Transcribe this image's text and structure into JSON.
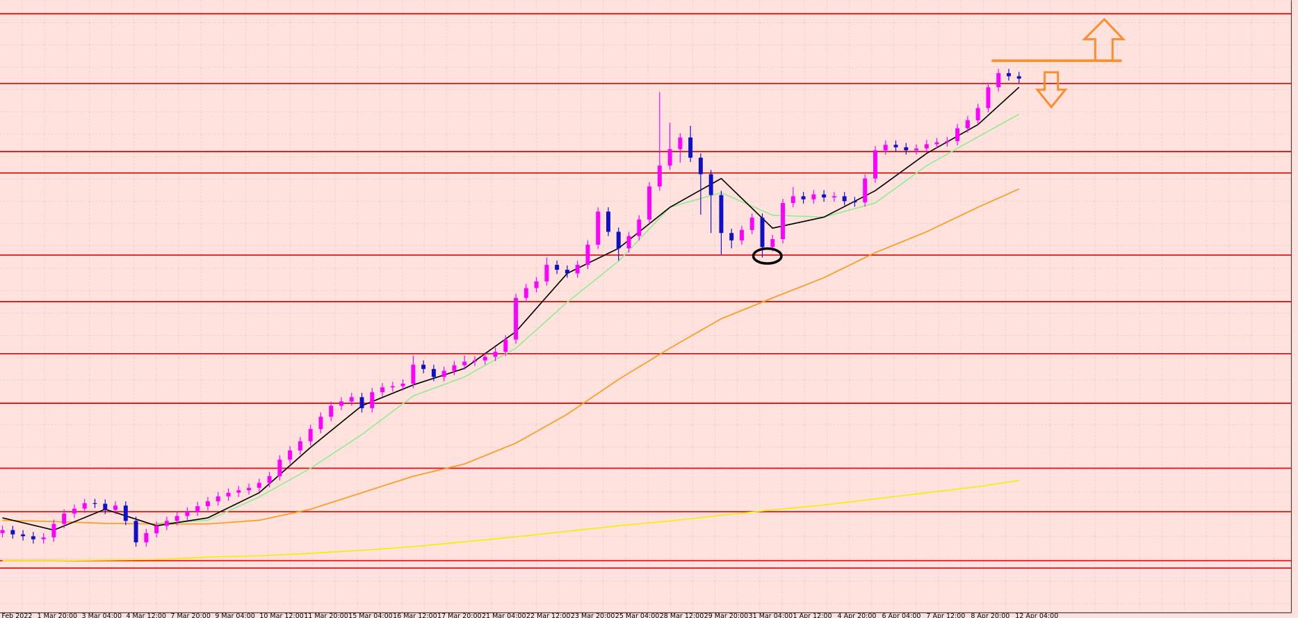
{
  "chart_data": {
    "type": "candlestick",
    "up_color": "#ff00ff",
    "down_color": "#1010c8",
    "level_color": "#ee0000",
    "grid": true,
    "ylim": [
      0,
      100
    ],
    "open": [
      13.0,
      13.5,
      12.8,
      12.5,
      12.0,
      12.3,
      14.5,
      16.2,
      17.0,
      17.9,
      17.8,
      16.8,
      17.5,
      15.0,
      11.5,
      13.0,
      14.2,
      15.0,
      15.8,
      16.5,
      17.4,
      18.2,
      19.0,
      19.6,
      20.0,
      20.4,
      21.2,
      22.3,
      25.0,
      26.5,
      28.0,
      30.0,
      32.0,
      33.8,
      34.5,
      35.2,
      33.4,
      36.0,
      36.8,
      37.0,
      37.4,
      40.5,
      39.8,
      38.5,
      39.5,
      40.4,
      41.0,
      41.2,
      41.8,
      42.6,
      44.6,
      51.4,
      53.0,
      54.1,
      56.8,
      56.0,
      55.4,
      56.8,
      60.1,
      65.5,
      62.2,
      59.5,
      61.5,
      64.2,
      69.6,
      73.0,
      75.7,
      77.6,
      74.3,
      71.6,
      68.2,
      62.0,
      60.8,
      62.5,
      64.5,
      59.7,
      61.0,
      66.9,
      68.0,
      67.5,
      68.3,
      67.8,
      68.0,
      67.2,
      67.0,
      70.9,
      75.5,
      76.4,
      76.0,
      75.5,
      75.8,
      76.5,
      76.8,
      77.0,
      79.1,
      80.4,
      82.4,
      85.8,
      88.1,
      87.6
    ],
    "high": [
      14.2,
      14.2,
      13.5,
      13.2,
      13.0,
      15.2,
      16.9,
      17.7,
      18.6,
      18.6,
      18.5,
      18.2,
      18.2,
      15.7,
      13.7,
      14.9,
      15.7,
      16.5,
      17.2,
      18.1,
      18.9,
      19.7,
      20.3,
      20.7,
      21.1,
      21.9,
      23.0,
      25.7,
      27.2,
      28.7,
      30.7,
      32.7,
      34.5,
      35.2,
      35.9,
      35.9,
      36.7,
      37.5,
      37.7,
      38.1,
      42.0,
      41.2,
      40.5,
      40.2,
      41.1,
      42.0,
      41.9,
      42.5,
      43.3,
      45.3,
      52.1,
      53.7,
      54.8,
      58.0,
      57.5,
      56.7,
      57.5,
      60.8,
      66.2,
      66.2,
      62.9,
      62.2,
      64.9,
      70.3,
      85.0,
      80.0,
      78.3,
      79.5,
      75.0,
      72.3,
      68.9,
      62.7,
      63.2,
      65.2,
      65.2,
      61.7,
      67.6,
      69.5,
      68.7,
      69.0,
      69.0,
      68.7,
      68.7,
      67.9,
      71.6,
      76.2,
      77.1,
      77.1,
      76.7,
      76.5,
      77.2,
      77.5,
      77.7,
      79.8,
      81.1,
      83.1,
      86.5,
      88.8,
      88.8,
      88.3
    ],
    "low": [
      12.3,
      12.1,
      11.8,
      11.3,
      11.3,
      11.6,
      13.8,
      15.5,
      16.3,
      17.1,
      16.1,
      16.1,
      14.3,
      10.8,
      10.8,
      12.3,
      13.5,
      14.3,
      15.1,
      15.8,
      16.7,
      17.5,
      18.3,
      18.9,
      19.3,
      19.7,
      20.5,
      21.6,
      24.3,
      25.8,
      27.3,
      29.3,
      31.3,
      33.1,
      33.8,
      32.7,
      32.7,
      35.3,
      36.1,
      36.3,
      36.7,
      39.1,
      37.8,
      37.8,
      38.8,
      39.7,
      40.3,
      40.5,
      41.1,
      41.9,
      43.9,
      50.7,
      52.3,
      53.4,
      55.3,
      54.7,
      54.7,
      56.1,
      59.4,
      61.5,
      57.5,
      58.8,
      60.8,
      63.5,
      68.9,
      72.3,
      73.5,
      73.6,
      65.0,
      62.0,
      58.5,
      59.5,
      60.1,
      61.8,
      58.0,
      59.0,
      60.3,
      66.2,
      66.8,
      66.8,
      67.1,
      67.1,
      66.5,
      66.3,
      66.3,
      70.2,
      74.8,
      75.3,
      74.8,
      74.8,
      75.1,
      75.8,
      76.1,
      76.3,
      78.4,
      79.7,
      81.7,
      85.1,
      86.9,
      86.5
    ],
    "close": [
      13.5,
      12.8,
      12.5,
      12.0,
      12.3,
      14.5,
      16.2,
      17.0,
      17.9,
      17.8,
      16.8,
      17.5,
      15.0,
      11.5,
      13.0,
      14.2,
      15.0,
      15.8,
      16.5,
      17.4,
      18.2,
      19.0,
      19.6,
      20.0,
      20.4,
      21.2,
      22.3,
      25.0,
      26.5,
      28.0,
      30.0,
      32.0,
      33.8,
      34.5,
      35.2,
      33.4,
      36.0,
      36.8,
      37.0,
      37.4,
      40.5,
      39.8,
      38.5,
      39.5,
      40.4,
      41.0,
      41.2,
      41.8,
      42.6,
      44.6,
      51.4,
      53.0,
      54.1,
      56.8,
      56.0,
      55.4,
      56.8,
      60.1,
      65.5,
      62.2,
      59.5,
      61.5,
      64.2,
      69.6,
      73.0,
      75.7,
      77.6,
      74.3,
      71.6,
      68.2,
      62.0,
      60.8,
      62.5,
      64.5,
      59.7,
      61.0,
      66.9,
      68.0,
      67.5,
      68.3,
      67.8,
      68.0,
      67.2,
      67.0,
      70.9,
      75.5,
      76.4,
      76.0,
      75.5,
      75.8,
      76.5,
      76.8,
      77.0,
      79.1,
      80.4,
      82.4,
      85.8,
      88.1,
      87.6,
      87.2
    ],
    "indicators": {
      "x": [
        0,
        5,
        10,
        15,
        20,
        25,
        30,
        35,
        40,
        45,
        50,
        55,
        60,
        65,
        70,
        75,
        80,
        85,
        90,
        95,
        99
      ],
      "series": [
        {
          "color": "#f0f000",
          "values": [
            8.5,
            8.5,
            8.6,
            8.7,
            9.1,
            9.3,
            9.7,
            10.2,
            10.8,
            11.6,
            12.4,
            13.3,
            14.2,
            15.0,
            15.9,
            16.8,
            17.6,
            18.6,
            19.6,
            20.6,
            21.6
          ]
        },
        {
          "color": "#ff9a1a",
          "values": [
            15.1,
            14.9,
            14.6,
            14.5,
            14.5,
            15.1,
            16.9,
            19.6,
            22.3,
            24.3,
            27.7,
            32.4,
            38.1,
            43.2,
            48.0,
            51.4,
            54.7,
            58.8,
            62.2,
            66.2,
            69.2
          ]
        },
        {
          "color": "#90ee90",
          "values": [
            null,
            null,
            null,
            14.6,
            15.1,
            18.9,
            23.6,
            29.1,
            35.4,
            38.5,
            43.2,
            50.7,
            57.4,
            66.2,
            68.6,
            64.9,
            64.6,
            66.9,
            73.0,
            77.7,
            81.4
          ]
        },
        {
          "color": "#000000",
          "values": [
            15.5,
            13.5,
            16.9,
            14.2,
            15.5,
            19.6,
            27.0,
            33.8,
            37.2,
            39.9,
            45.9,
            55.4,
            59.5,
            66.2,
            70.9,
            62.8,
            64.6,
            68.9,
            75.0,
            79.7,
            85.8
          ]
        }
      ]
    },
    "levels": [
      97.8,
      86.4,
      75.3,
      71.8,
      58.4,
      50.8,
      42.3,
      34.2,
      23.6,
      16.5,
      8.5,
      7.3
    ],
    "time_labels": [
      "Feb 2022",
      "1 Mar 20:00",
      "3 Mar 04:00",
      "4 Mar 12:00",
      "7 Mar 20:00",
      "9 Mar 04:00",
      "10 Mar 12:00",
      "11 Mar 20:00",
      "15 Mar 04:00",
      "16 Mar 12:00",
      "17 Mar 20:00",
      "21 Mar 04:00",
      "22 Mar 12:00",
      "23 Mar 20:00",
      "25 Mar 04:00",
      "28 Mar 12:00",
      "29 Mar 20:00",
      "31 Mar 04:00",
      "1 Apr 12:00",
      "4 Apr 20:00",
      "6 Apr 04:00",
      "7 Apr 12:00",
      "8 Apr 20:00",
      "12 Apr 04:00"
    ]
  }
}
